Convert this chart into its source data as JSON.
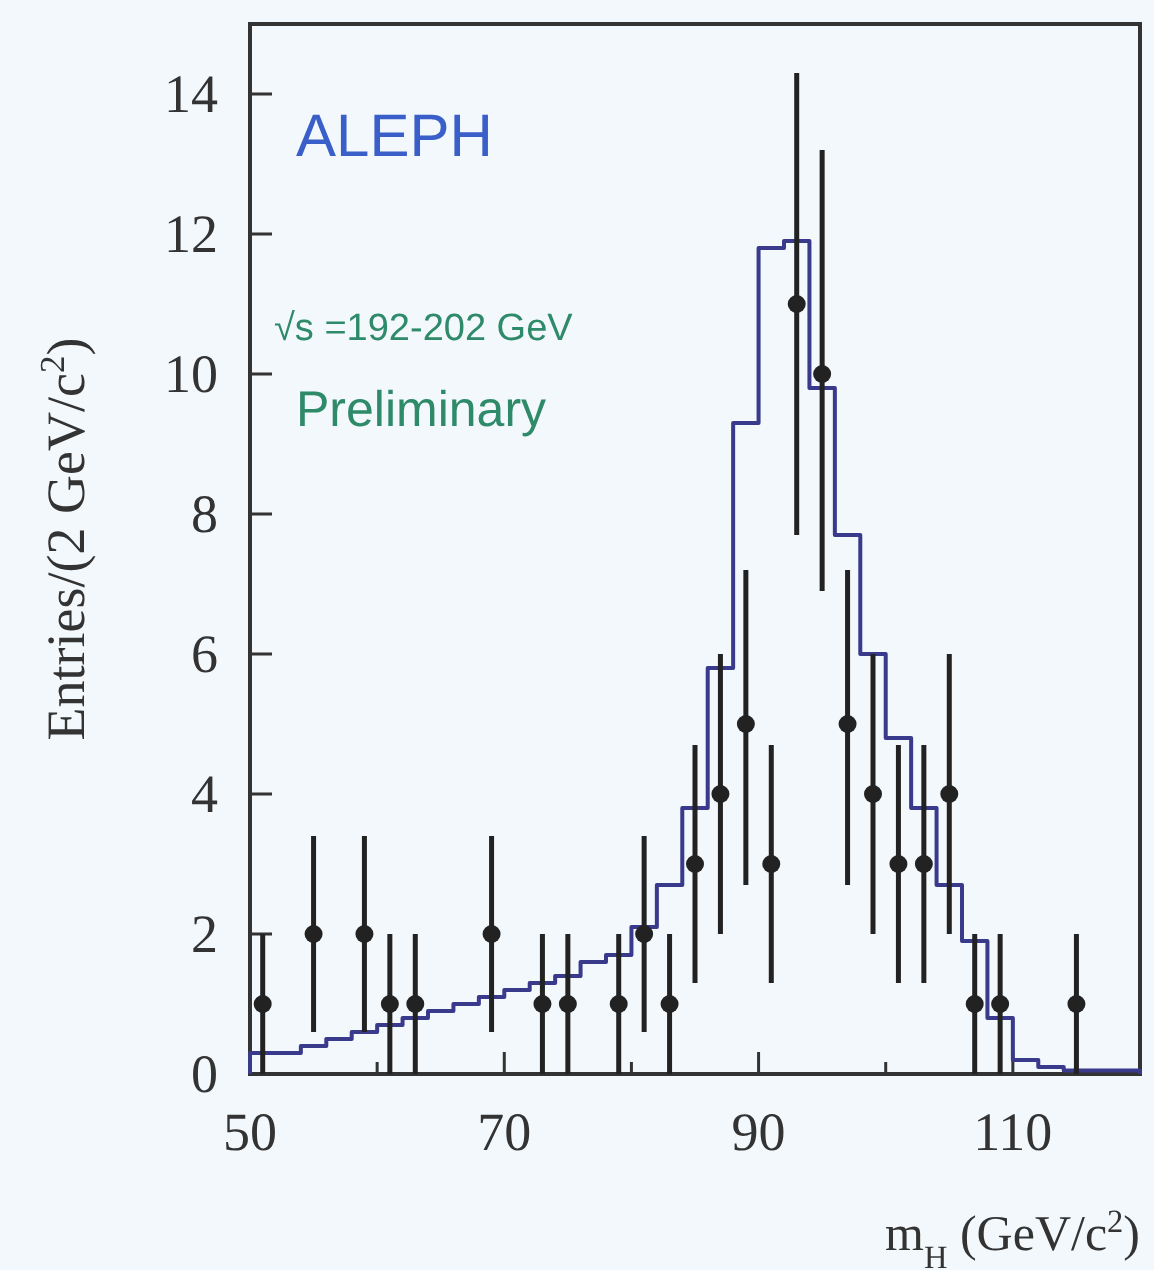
{
  "chart_data": {
    "type": "histogram",
    "xlabel": "m$_{H}$ (GeV/c$^{2}$)",
    "ylabel": "Entries/(2 GeV/c$^{2}$)",
    "annotations": [
      "ALEPH",
      "√s =192-202 GeV",
      "Preliminary"
    ],
    "xlim": [
      50,
      120
    ],
    "xticks": [
      50,
      {
        "value": 60,
        "label": null
      },
      70,
      {
        "value": 80,
        "label": null
      },
      90,
      {
        "value": 100,
        "label": null
      },
      110
    ],
    "ylim": [
      0,
      15
    ],
    "yticks": [
      0,
      2,
      4,
      6,
      8,
      10,
      12,
      14
    ],
    "grid": false,
    "series": [
      {
        "type": "histogram",
        "color": "#3a3a8c",
        "bins": [
          50,
          52,
          54,
          56,
          58,
          60,
          62,
          64,
          66,
          68,
          70,
          72,
          74,
          76,
          78,
          80,
          82,
          84,
          86,
          88,
          90,
          92,
          94,
          96,
          98,
          100,
          102,
          104,
          106,
          108,
          110,
          112,
          114,
          116,
          118,
          120
        ],
        "values": [
          0.3,
          0.3,
          0.4,
          0.5,
          0.6,
          0.7,
          0.8,
          0.9,
          1,
          1.1,
          1.2,
          1.3,
          1.4,
          1.6,
          1.7,
          2.1,
          2.7,
          3.8,
          5.8,
          9.3,
          11.8,
          11.9,
          9.8,
          7.7,
          6,
          4.8,
          3.8,
          2.7,
          1.9,
          0.8,
          0.2,
          0.1,
          0.05,
          0.05,
          0.05
        ]
      },
      {
        "type": "scatter",
        "marker": "circle",
        "color": "#222222",
        "x": [
          51,
          55,
          59,
          61,
          63,
          69,
          73,
          75,
          79,
          81,
          83,
          85,
          87,
          89,
          91,
          93,
          95,
          97,
          99,
          101,
          103,
          105,
          107,
          109,
          115
        ],
        "values": [
          1,
          2,
          2,
          1,
          1,
          2,
          1,
          1,
          1,
          2,
          1,
          3,
          4,
          5,
          3,
          11,
          10,
          5,
          4,
          3,
          3,
          4,
          1,
          1,
          1
        ],
        "errors": [
          [
            0,
            2
          ],
          [
            0.6,
            3.4
          ],
          [
            0.6,
            3.4
          ],
          [
            0,
            2
          ],
          [
            0,
            2
          ],
          [
            0.6,
            3.4
          ],
          [
            0,
            2
          ],
          [
            0,
            2
          ],
          [
            0,
            2
          ],
          [
            0.6,
            3.4
          ],
          [
            0,
            2
          ],
          [
            1.3,
            4.7
          ],
          [
            2,
            6
          ],
          [
            2.7,
            7.2
          ],
          [
            1.3,
            4.7
          ],
          [
            7.7,
            14.3
          ],
          [
            6.9,
            13.2
          ],
          [
            2.7,
            7.2
          ],
          [
            2,
            6
          ],
          [
            1.3,
            4.7
          ],
          [
            1.3,
            4.7
          ],
          [
            2,
            6
          ],
          [
            0,
            2
          ],
          [
            0,
            2
          ],
          [
            0,
            2
          ]
        ]
      }
    ]
  }
}
